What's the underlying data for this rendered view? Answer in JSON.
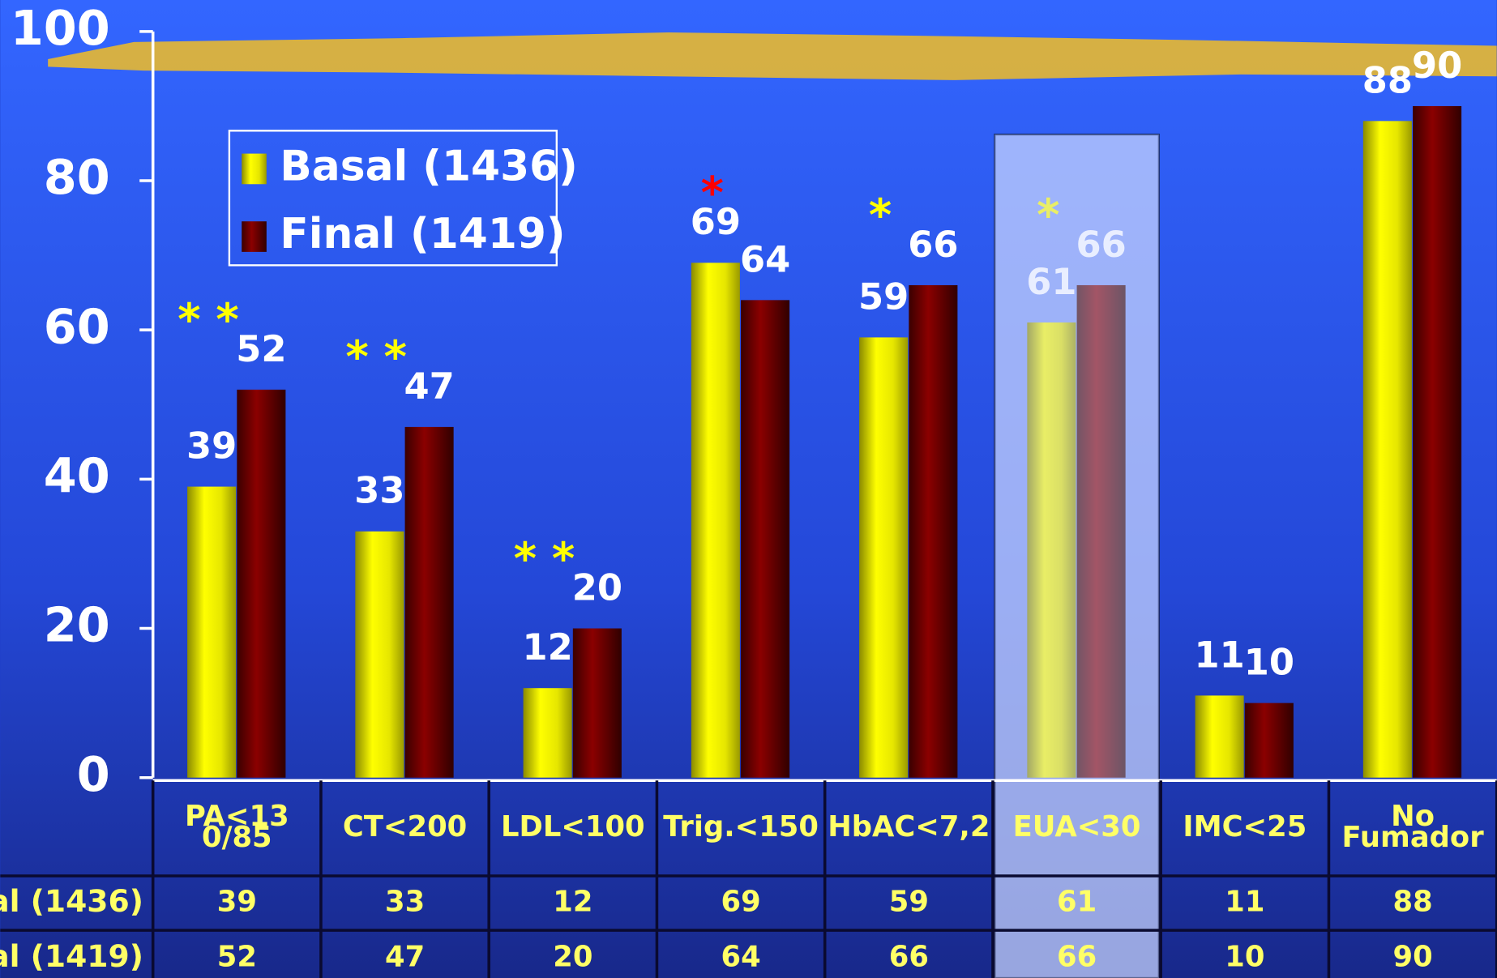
{
  "chart_data": {
    "type": "bar",
    "categories": [
      "PA<13\n0/85",
      "CT<200",
      "LDL<100",
      "Trig.<150",
      "HbAC<7,2",
      "EUA<30",
      "IMC<25",
      "No\nFumador"
    ],
    "series": [
      {
        "name": "Basal (1436)",
        "color": "#ffff00",
        "values": [
          39,
          33,
          12,
          69,
          59,
          61,
          11,
          88
        ]
      },
      {
        "name": "Final (1419)",
        "color": "#8b0000",
        "values": [
          52,
          47,
          20,
          64,
          66,
          66,
          10,
          90
        ]
      }
    ],
    "significance": [
      "* *",
      "* *",
      "* *",
      "*",
      "*",
      "*",
      null,
      null
    ],
    "significance_colors": [
      "#ffff00",
      "#ffff00",
      "#ffff00",
      "#ff0000",
      "#ffff00",
      "#ffff00",
      null,
      null
    ],
    "ylim": [
      0,
      100
    ],
    "yticks": [
      0,
      20,
      40,
      60,
      80,
      100
    ]
  }
}
